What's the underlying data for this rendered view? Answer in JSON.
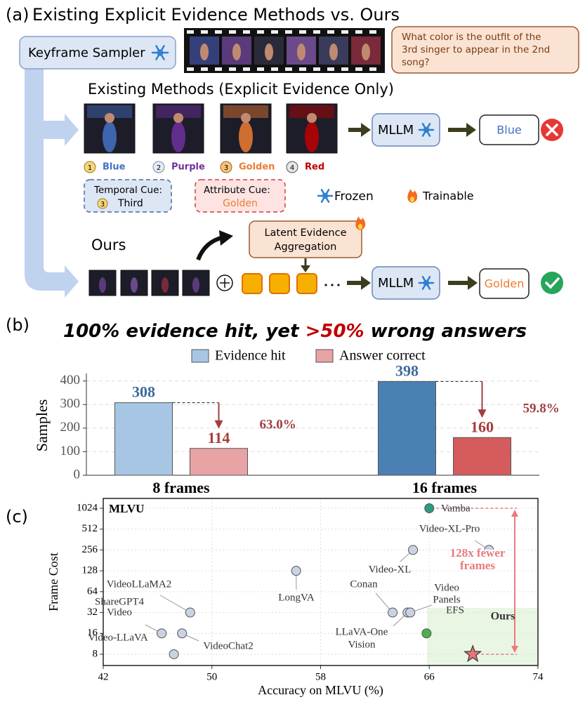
{
  "panel_a": {
    "label": "(a)",
    "title": "Existing Explicit Evidence Methods vs. Ours",
    "keyframe_sampler": "Keyframe Sampler",
    "question": [
      "What color is the outfit of the",
      "3rd singer to appear in the 2nd",
      "song?"
    ],
    "existing_title": "Existing Methods (Explicit Evidence Only)",
    "frames": [
      {
        "rank": "1",
        "label": "Blue",
        "color": "#4472c4"
      },
      {
        "rank": "2",
        "label": "Purple",
        "color": "#7030a0"
      },
      {
        "rank": "3",
        "label": "Golden",
        "color": "#ed7d31"
      },
      {
        "rank": "4",
        "label": "Red",
        "color": "#c00000"
      }
    ],
    "mllm": "MLLM",
    "existing_answer": "Blue",
    "temporal_cue": {
      "label": "Temporal Cue:",
      "rank": "3",
      "value": "Third"
    },
    "attribute_cue": {
      "label": "Attribute Cue:",
      "value": "Golden"
    },
    "legend": {
      "frozen": "Frozen",
      "trainable": "Trainable"
    },
    "ours_title": "Ours",
    "latent": [
      "Latent Evidence",
      "Aggregation"
    ],
    "ours_answer": "Golden"
  },
  "chart_data": [
    {
      "type": "bar",
      "label": "(b)",
      "title_parts": [
        "100% evidence hit, yet ",
        ">50%",
        " wrong answers"
      ],
      "highlight_color": "#c00000",
      "categories": [
        "8 frames",
        "16 frames"
      ],
      "series": [
        {
          "name": "Evidence hit",
          "color": "#a7c6e3",
          "colors": [
            "#a7c6e3",
            "#4a80b4"
          ],
          "label_color": "#3c6a9c",
          "values": [
            308,
            398
          ]
        },
        {
          "name": "Answer correct",
          "color": "#e8a3a5",
          "colors": [
            "#e8a3a5",
            "#d45c5c"
          ],
          "label_color": "#a83c3c",
          "values": [
            114,
            160
          ]
        }
      ],
      "annotations": [
        "63.0%",
        "59.8%"
      ],
      "ylabel": "Samples",
      "ylim": [
        0,
        420
      ],
      "yticks": [
        0,
        100,
        200,
        300,
        400
      ],
      "grid": true
    },
    {
      "type": "scatter",
      "label": "(c)",
      "title": "MLVU",
      "xlabel": "Accuracy on MLVU (%)",
      "ylabel": "Frame Cost",
      "xlim": [
        42,
        74
      ],
      "xticks": [
        42,
        50,
        58,
        66,
        74
      ],
      "ylog": true,
      "ylim": [
        5.5,
        1420
      ],
      "yticks": [
        8,
        16,
        32,
        64,
        128,
        256,
        512,
        1024
      ],
      "grid": true,
      "points": [
        {
          "name": [
            "Vamba"
          ],
          "x": 66,
          "y": 1024,
          "color": "#2e9a7e"
        },
        {
          "name": [
            "Video-XL-Pro"
          ],
          "x": 70.4,
          "y": 256,
          "color": "#c9d3e3"
        },
        {
          "name": [
            "Video-XL"
          ],
          "x": 64.8,
          "y": 256,
          "color": "#c9d3e3"
        },
        {
          "name": [
            "LongVA"
          ],
          "x": 56.2,
          "y": 128,
          "color": "#c9d3e3"
        },
        {
          "name": [
            "Conan"
          ],
          "x": 63.3,
          "y": 32,
          "color": "#c9d3e3"
        },
        {
          "name": [
            "LLaVA-One",
            "Vision"
          ],
          "x": 64.4,
          "y": 32,
          "color": "#c9d3e3"
        },
        {
          "name": [
            "Video",
            "Panels"
          ],
          "x": 64.6,
          "y": 32,
          "color": "#c9d3e3"
        },
        {
          "name": [
            "EFS"
          ],
          "x": 65.8,
          "y": 16,
          "color": "#4caf50"
        },
        {
          "name": [
            "VideoLLaMA2"
          ],
          "x": 48.4,
          "y": 32,
          "color": "#c9d3e3"
        },
        {
          "name": [
            "ShareGPT4",
            "Video"
          ],
          "x": 46.3,
          "y": 16,
          "color": "#c9d3e3"
        },
        {
          "name": [
            "Video-LLaVA"
          ],
          "x": 47.2,
          "y": 8,
          "color": "#c9d3e3"
        },
        {
          "name": [
            "VideoChat2"
          ],
          "x": 47.8,
          "y": 16,
          "color": "#c9d3e3"
        },
        {
          "name": [
            "Ours"
          ],
          "x": 69.2,
          "y": 8,
          "color": "#e8737a",
          "marker": "star"
        }
      ],
      "annotation": [
        "128x fewer",
        "frames"
      ],
      "annotation_color": "#e87a7a"
    }
  ]
}
